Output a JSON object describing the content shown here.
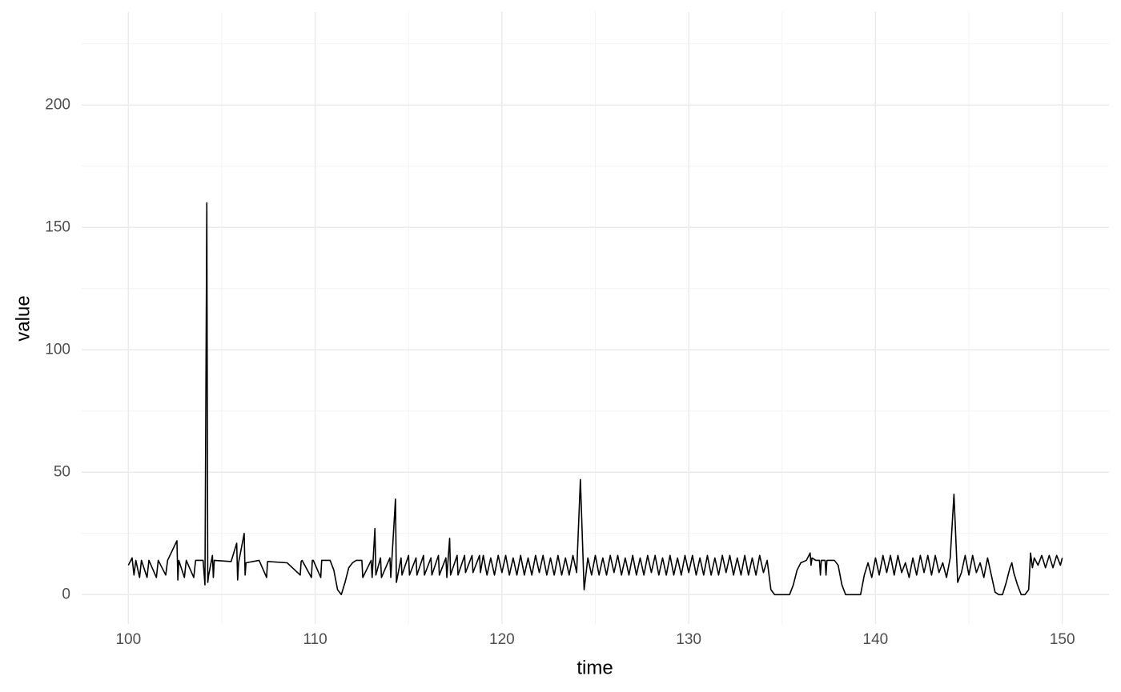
{
  "chart_data": {
    "type": "line",
    "x_label": "time",
    "y_label": "value",
    "color": "#000000",
    "grid": true,
    "xlim": [
      97.5,
      152.5
    ],
    "xticks": [
      100,
      110,
      120,
      130,
      140,
      150
    ],
    "ylim": [
      -12,
      238
    ],
    "yticks": [
      0,
      50,
      100,
      150,
      200
    ],
    "x": [
      100,
      100.2,
      100.3,
      100.4,
      100.6,
      100.7,
      101.0,
      101.1,
      101.5,
      101.6,
      102.0,
      102.1,
      102.6,
      102.65,
      102.7,
      103.0,
      103.1,
      103.5,
      103.6,
      104.0,
      104.1,
      104.2,
      104.25,
      104.3,
      104.5,
      104.55,
      104.6,
      105.5,
      105.8,
      105.85,
      105.9,
      106.2,
      106.25,
      106.3,
      107.0,
      107.4,
      107.45,
      107.5,
      108.5,
      109.2,
      109.25,
      109.3,
      109.8,
      109.85,
      109.9,
      110.3,
      110.35,
      110.4,
      110.8,
      111.0,
      111.2,
      111.4,
      111.6,
      111.8,
      112.0,
      112.2,
      112.5,
      112.55,
      113.0,
      113.05,
      113.2,
      113.25,
      113.5,
      113.55,
      114.0,
      114.05,
      114.3,
      114.35,
      114.6,
      114.65,
      115.0,
      115.05,
      115.4,
      115.45,
      115.8,
      115.85,
      116.2,
      116.25,
      116.6,
      116.65,
      117.0,
      117.05,
      117.2,
      117.25,
      117.6,
      117.65,
      118.0,
      118.05,
      118.4,
      118.45,
      118.8,
      118.85,
      119.0,
      119.2,
      119.4,
      119.6,
      119.8,
      120.0,
      120.2,
      120.4,
      120.6,
      120.8,
      121.0,
      121.2,
      121.4,
      121.6,
      121.8,
      122.0,
      122.2,
      122.4,
      122.6,
      122.8,
      123.0,
      123.2,
      123.4,
      123.6,
      123.8,
      124.0,
      124.2,
      124.4,
      124.6,
      124.8,
      125.0,
      125.2,
      125.4,
      125.6,
      125.8,
      126.0,
      126.2,
      126.4,
      126.6,
      126.8,
      127.0,
      127.2,
      127.4,
      127.6,
      127.8,
      128.0,
      128.2,
      128.4,
      128.6,
      128.8,
      129.0,
      129.2,
      129.4,
      129.6,
      129.8,
      130.0,
      130.2,
      130.4,
      130.6,
      130.8,
      131.0,
      131.2,
      131.4,
      131.6,
      131.8,
      132.0,
      132.2,
      132.4,
      132.6,
      132.8,
      133.0,
      133.2,
      133.4,
      133.6,
      133.8,
      134.0,
      134.2,
      134.4,
      134.6,
      135.4,
      135.6,
      135.8,
      136.0,
      136.3,
      136.5,
      136.55,
      136.6,
      136.8,
      137.0,
      137.05,
      137.1,
      137.3,
      137.35,
      137.4,
      137.8,
      138.0,
      138.2,
      138.4,
      139.2,
      139.4,
      139.6,
      139.8,
      140.0,
      140.2,
      140.4,
      140.6,
      140.8,
      141.0,
      141.2,
      141.4,
      141.6,
      141.8,
      142.0,
      142.2,
      142.4,
      142.6,
      142.8,
      143.0,
      143.2,
      143.4,
      143.6,
      143.8,
      144.0,
      144.2,
      144.4,
      144.6,
      144.8,
      145.0,
      145.2,
      145.4,
      145.6,
      145.8,
      146.0,
      146.2,
      146.4,
      146.6,
      146.8,
      147.0,
      147.2,
      147.3,
      147.4,
      147.6,
      147.8,
      148.0,
      148.2,
      148.3,
      148.4,
      148.5,
      148.7,
      148.9,
      149.1,
      149.3,
      149.5,
      149.7,
      149.9,
      150.0
    ],
    "values": [
      12,
      15,
      8,
      14,
      7,
      14,
      7,
      14,
      7,
      14,
      8,
      14,
      22,
      6,
      14,
      7,
      14,
      7,
      14,
      14,
      4,
      160,
      5,
      8,
      16,
      7,
      14,
      13.5,
      21,
      6,
      13,
      25,
      8,
      13,
      14,
      7,
      13.5,
      13.5,
      13,
      8,
      13.5,
      14,
      7,
      14,
      14,
      7,
      14,
      14,
      14,
      10,
      2,
      0,
      5,
      11,
      13,
      14,
      14,
      7,
      14,
      7,
      27,
      8,
      15,
      7,
      15,
      7,
      39,
      5,
      15,
      8,
      16,
      8,
      15,
      8,
      16,
      8,
      15,
      8,
      16,
      8,
      15,
      7,
      23,
      8,
      16,
      8,
      16,
      9,
      16,
      9,
      16,
      9,
      16,
      8,
      15,
      8,
      16,
      9,
      16,
      8,
      15,
      8,
      16,
      8,
      15,
      8,
      16,
      9,
      16,
      8,
      15,
      8,
      16,
      8,
      15,
      8,
      16,
      9,
      47,
      2,
      15,
      8,
      16,
      8,
      15,
      8,
      16,
      9,
      16,
      8,
      15,
      8,
      16,
      8,
      15,
      8,
      16,
      9,
      16,
      8,
      15,
      8,
      16,
      8,
      15,
      8,
      16,
      9,
      16,
      8,
      15,
      8,
      16,
      8,
      15,
      8,
      16,
      9,
      16,
      8,
      15,
      8,
      16,
      8,
      15,
      8,
      16,
      9,
      14,
      2,
      0,
      0,
      4,
      10,
      13,
      14,
      17,
      12,
      15,
      14,
      14,
      8,
      14,
      14,
      8,
      14,
      14,
      12,
      4,
      0,
      0,
      8,
      13,
      7,
      15,
      8,
      16,
      9,
      16,
      8,
      16,
      9,
      13,
      7,
      15,
      8,
      16,
      9,
      16,
      8,
      16,
      9,
      13,
      7,
      15,
      41,
      5,
      9,
      16,
      8,
      16,
      9,
      13,
      7,
      15,
      8,
      1,
      0,
      0,
      5,
      11,
      13,
      9,
      4,
      0,
      0,
      2,
      17,
      11,
      15,
      12,
      16,
      11,
      16,
      11,
      16,
      12,
      15
    ]
  }
}
